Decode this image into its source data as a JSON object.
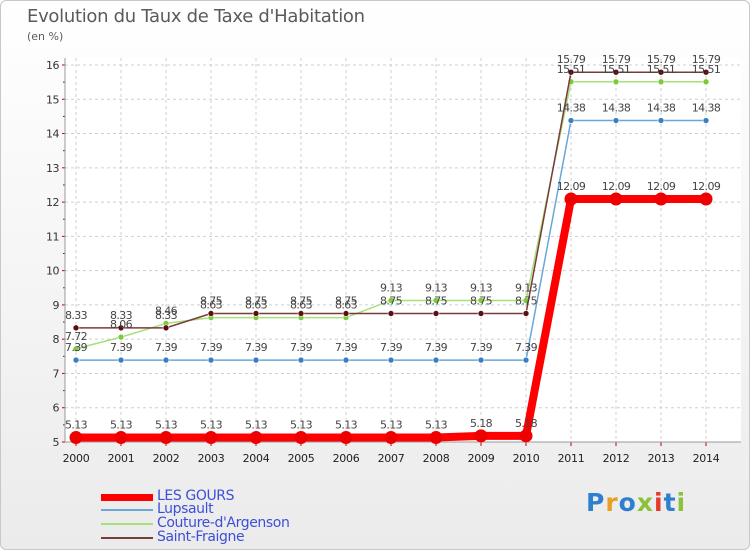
{
  "chart_data": {
    "type": "line",
    "title": "Evolution du Taux de Taxe d'Habitation",
    "ylabel": "(en %)",
    "xlabel": "",
    "ylim": [
      5,
      16
    ],
    "grid": true,
    "legend_position": "bottom-left",
    "x": [
      "2000",
      "2001",
      "2002",
      "2003",
      "2004",
      "2005",
      "2006",
      "2007",
      "2008",
      "2009",
      "2010",
      "2011",
      "2012",
      "2013",
      "2014"
    ],
    "yticks": [
      "5",
      "6",
      "7",
      "8",
      "9",
      "10",
      "11",
      "12",
      "13",
      "14",
      "15",
      "16"
    ],
    "series": [
      {
        "name": "LES GOURS",
        "color": "#ff0000",
        "marker_color": "#ee0000",
        "values": [
          5.13,
          5.13,
          5.13,
          5.13,
          5.13,
          5.13,
          5.13,
          5.13,
          5.13,
          5.18,
          5.18,
          12.09,
          12.09,
          12.09,
          12.09
        ],
        "labels": [
          "5.13",
          "5.13",
          "5.13",
          "5.13",
          "5.13",
          "5.13",
          "5.13",
          "5.13",
          "5.13",
          "5.18",
          "5.18",
          "12.09",
          "12.09",
          "12.09",
          "12.09"
        ]
      },
      {
        "name": "Lupsault",
        "color": "#6aa6d8",
        "marker_color": "#3a7fc4",
        "values": [
          7.39,
          7.39,
          7.39,
          7.39,
          7.39,
          7.39,
          7.39,
          7.39,
          7.39,
          7.39,
          7.39,
          14.38,
          14.38,
          14.38,
          14.38
        ],
        "labels": [
          "7.39",
          "7.39",
          "7.39",
          "7.39",
          "7.39",
          "7.39",
          "7.39",
          "7.39",
          "7.39",
          "7.39",
          "7.39",
          "14.38",
          "14.38",
          "14.38",
          "14.38"
        ]
      },
      {
        "name": "Couture-d'Argenson",
        "color": "#a6e07a",
        "marker_color": "#7ccb3c",
        "values": [
          7.72,
          8.06,
          8.46,
          8.63,
          8.63,
          8.63,
          8.63,
          9.13,
          9.13,
          9.13,
          9.13,
          15.51,
          15.51,
          15.51,
          15.51
        ],
        "labels": [
          "7.72",
          "8.06",
          "8.46",
          "8.63",
          "8.63",
          "8.63",
          "8.63",
          "9.13",
          "9.13",
          "9.13",
          "9.13",
          "15.51",
          "15.51",
          "15.51",
          "15.51"
        ]
      },
      {
        "name": "Saint-Fraigne",
        "color": "#7a3b3b",
        "marker_color": "#5a0f12",
        "values": [
          8.33,
          8.33,
          8.33,
          8.75,
          8.75,
          8.75,
          8.75,
          8.75,
          8.75,
          8.75,
          8.75,
          15.79,
          15.79,
          15.79,
          15.79
        ],
        "labels": [
          "8.33",
          "8.33",
          "8.33",
          "8.75",
          "8.75",
          "8.75",
          "8.75",
          "8.75",
          "8.75",
          "8.75",
          "8.75",
          "15.79",
          "15.79",
          "15.79",
          "15.79"
        ]
      }
    ]
  },
  "legend": {
    "items": [
      "LES GOURS",
      "Lupsault",
      "Couture-d'Argenson",
      "Saint-Fraigne"
    ]
  },
  "brand": {
    "text": "Proxiti",
    "colors": [
      "#2f7fd0",
      "#e8a020",
      "#2f7fd0",
      "#8ac23a",
      "#e53a2b",
      "#2f7fd0",
      "#8ac23a"
    ]
  }
}
